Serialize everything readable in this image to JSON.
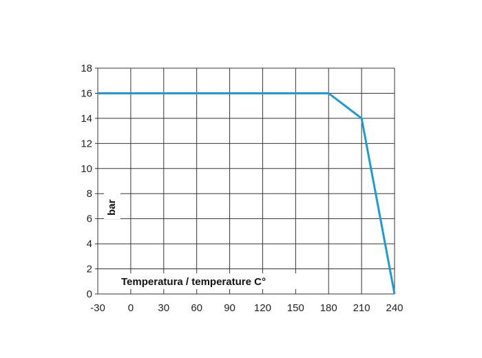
{
  "chart_data": {
    "type": "line",
    "title": "",
    "xlabel": "Temperatura / temperature C°",
    "ylabel": "bar",
    "x_ticks": [
      "-30",
      "0",
      "30",
      "60",
      "90",
      "120",
      "150",
      "180",
      "210",
      "240"
    ],
    "y_ticks": [
      "0",
      "2",
      "4",
      "6",
      "8",
      "10",
      "12",
      "14",
      "16",
      "18"
    ],
    "xlim": [
      -30,
      240
    ],
    "ylim": [
      0,
      18
    ],
    "grid": true,
    "series": [
      {
        "x": [
          -30,
          180,
          210,
          240
        ],
        "y": [
          16,
          16,
          14,
          0
        ],
        "color": "#1b9bd6"
      }
    ],
    "grid_color": "#333333"
  }
}
